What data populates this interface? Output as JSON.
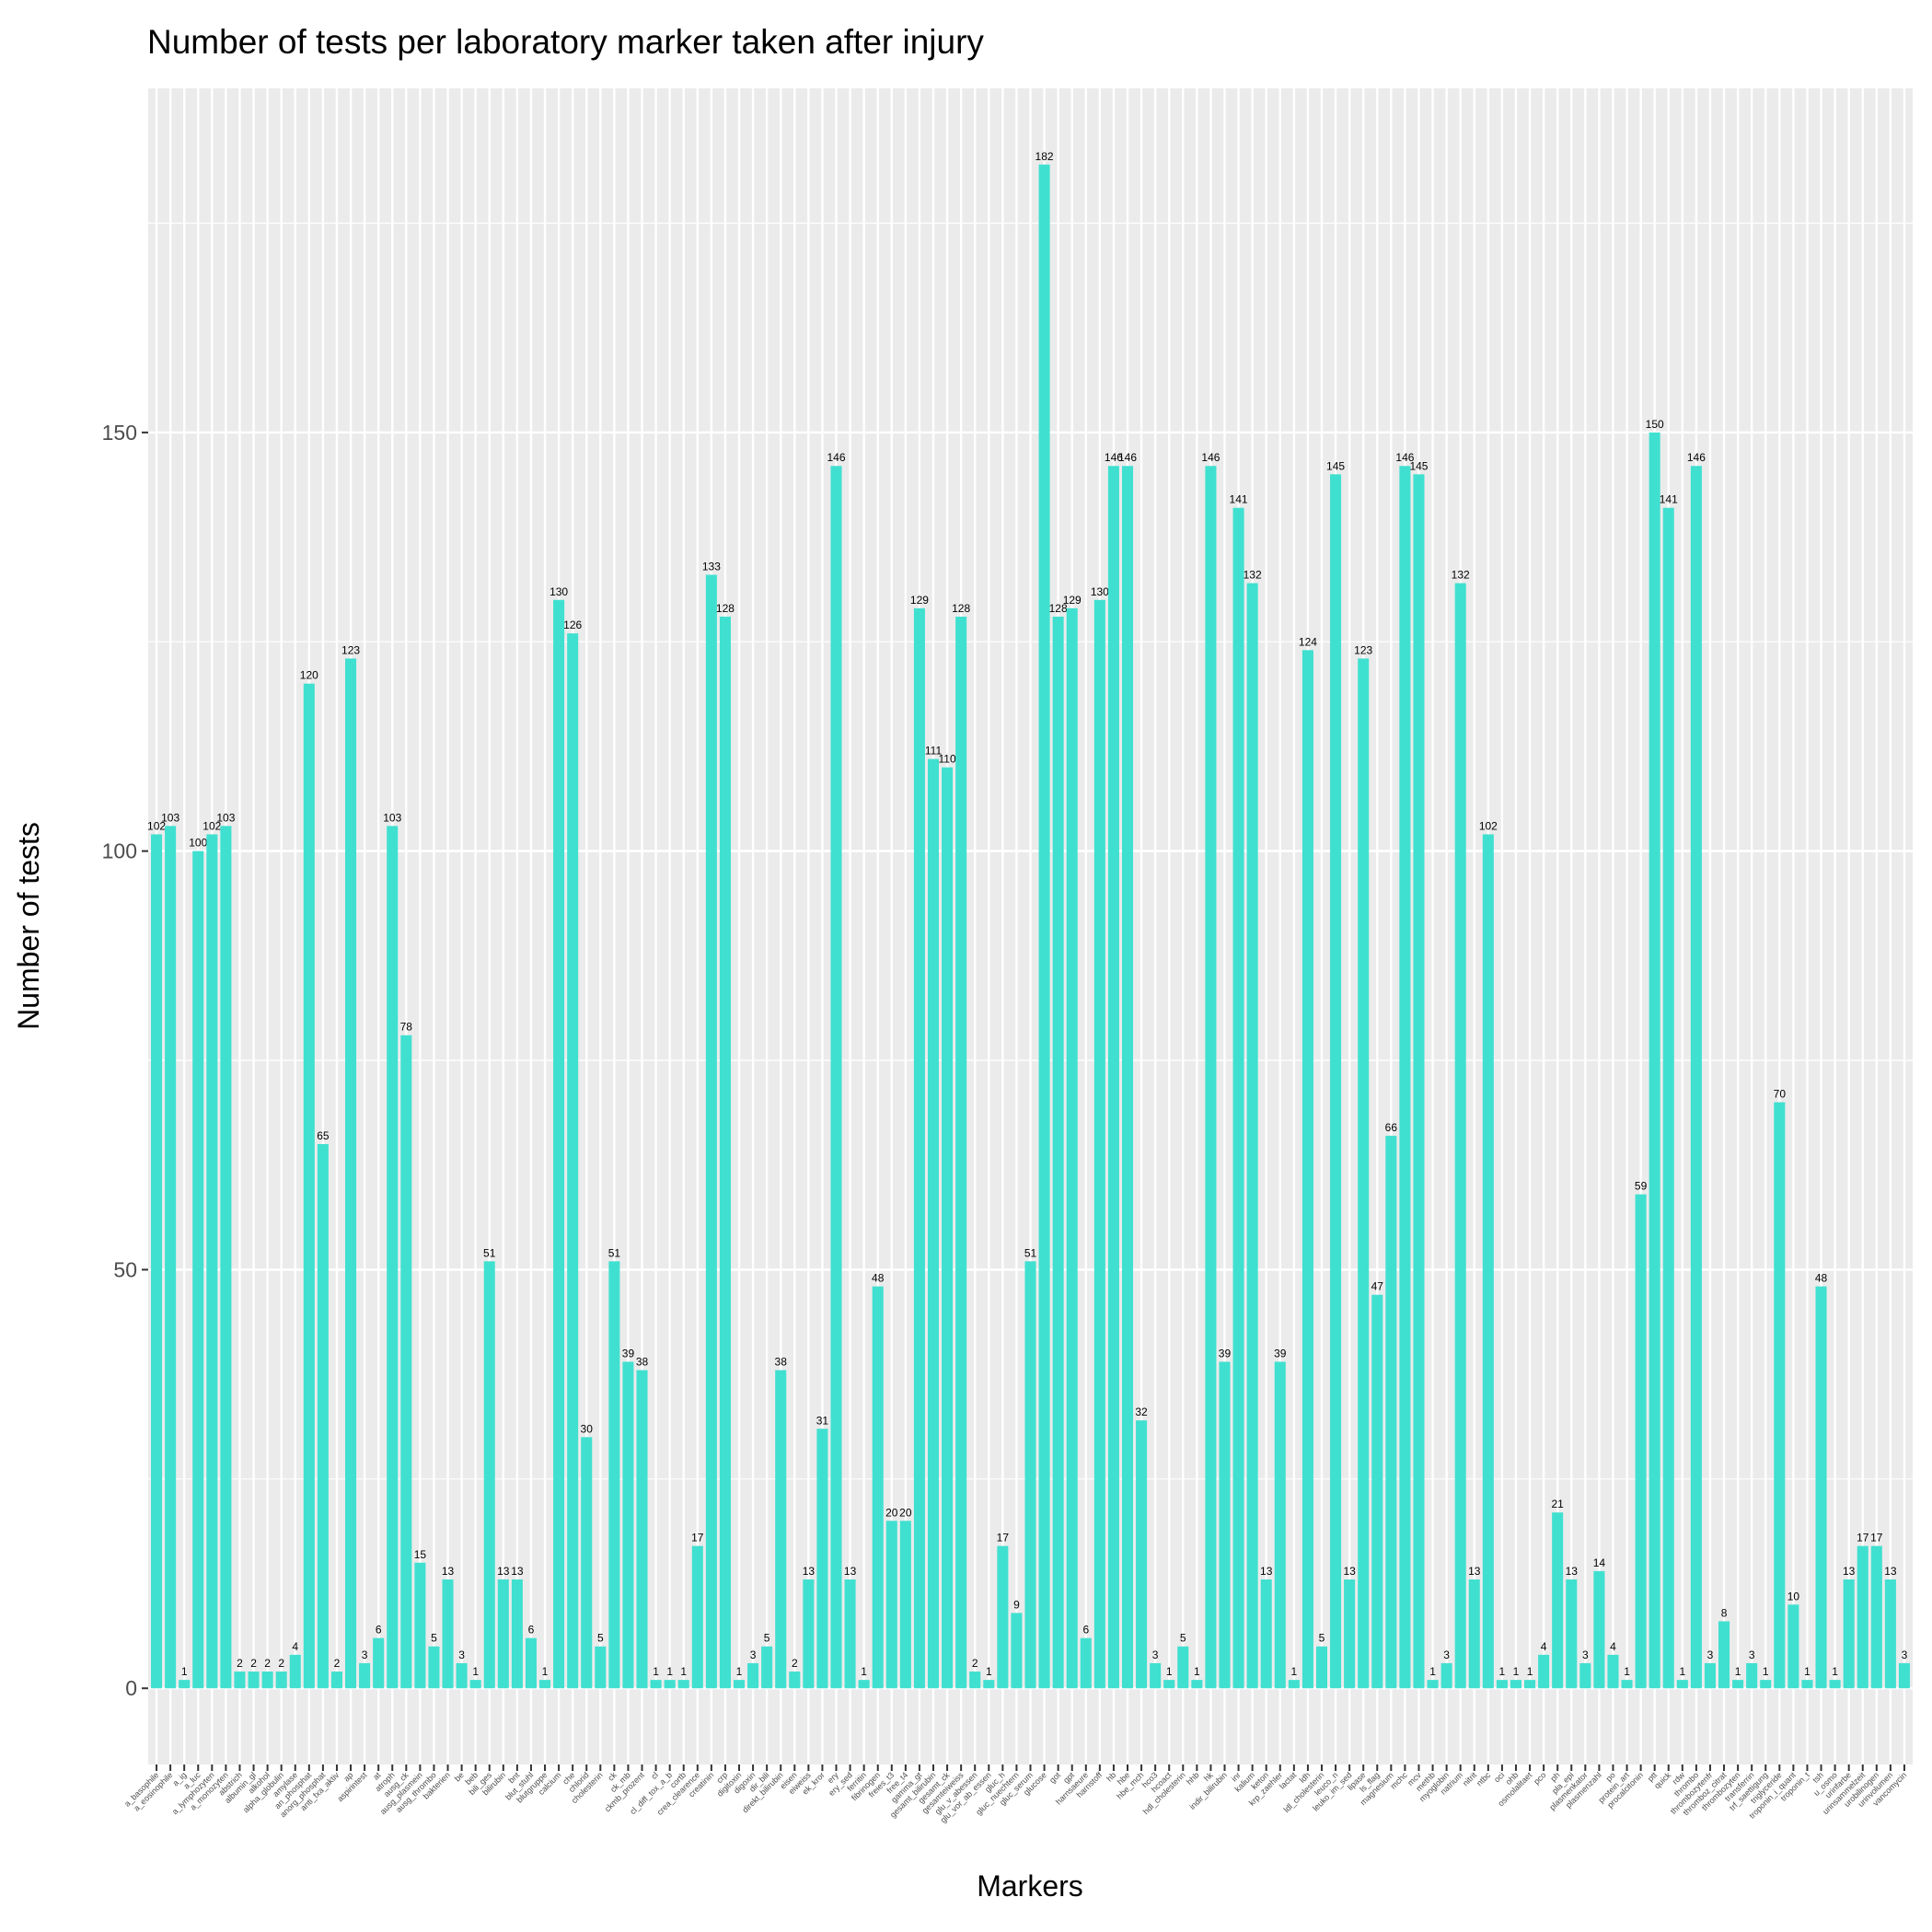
{
  "chart_data": {
    "type": "bar",
    "title": "Number of tests per laboratory marker taken after injury",
    "x_label": "Markers",
    "y_label": "Number of tests",
    "color": "#40e0d0",
    "grid": true,
    "ylim": [
      -9.1,
      191.1
    ],
    "yticks": [
      0,
      50,
      100,
      150
    ],
    "categories": [
      "a_basophile",
      "a_eosinophile",
      "a_ig",
      "a_luc",
      "a_lymphozyten",
      "a_monozyten",
      "abstrich",
      "albumin_gl",
      "alkohol",
      "alpha_globulin",
      "amylase",
      "an_phosphat",
      "anorg_phosphat",
      "anti_fxa_aktiv",
      "ap",
      "aspirintest",
      "at",
      "atroph",
      "ausg_ck",
      "ausg_plasmein",
      "ausg_thrombo",
      "bakterien",
      "be",
      "beb",
      "bili_ges",
      "bilirubin",
      "bnt",
      "blut_stuhl",
      "blutgruppe",
      "calcium",
      "che",
      "chlorid",
      "cholesterin",
      "ck",
      "ck_mb",
      "ckmb_prozent",
      "cl",
      "cl_diff_tox_a_b",
      "cortb",
      "crea_clearence",
      "creatinin",
      "crp",
      "digitoxin",
      "digoxin",
      "dir_bili",
      "direkt_bilirubin",
      "eisen",
      "eiweiss",
      "ek_kror",
      "ery",
      "ery_sed",
      "ferritin",
      "fibrinogen",
      "freies_t3",
      "free_t4",
      "gamma_gt",
      "gesamt_bilirubin",
      "gesamt_ck",
      "gesamteiweiss",
      "glu_v_abessen",
      "glu_vor_ab_essen",
      "gluc_h",
      "gluc_nuechtern",
      "gluc_serum",
      "glucose",
      "got",
      "gpt",
      "harnsaeure",
      "harnstoff",
      "hb",
      "hbe",
      "hbe_mch",
      "hco3",
      "hcoact",
      "hdl_cholesterin",
      "hhb",
      "hk",
      "indir_bilirubin",
      "inr",
      "kalium",
      "keton",
      "krp_zaehler",
      "lactat",
      "ldh",
      "ldl_cholesterin",
      "leuco_n",
      "leuko_im_sed",
      "lipase",
      "ls_flag",
      "magnesium",
      "mchc",
      "mcv",
      "methb",
      "myoglobin",
      "natrium",
      "nitrit",
      "ntbc",
      "oci",
      "ohb",
      "osmolalitaet",
      "pco",
      "ph",
      "pla_epi",
      "plasmenkator",
      "plasmenzahl",
      "po",
      "protein_art",
      "procalcitonin",
      "ptt",
      "quick",
      "rdw",
      "thrombo",
      "thrombozytenfr",
      "thromboz_citrat",
      "thrombozyten",
      "transferrin",
      "trf_saettigung",
      "triglyceride",
      "troponin_i_quant",
      "troponin_t",
      "tsh",
      "u_osmo",
      "urinfarbe",
      "urinsammelzeit",
      "urobilinogen",
      "urinvolumen",
      "vancomycin"
    ],
    "values": [
      102,
      103,
      1,
      100,
      102,
      103,
      2,
      2,
      2,
      2,
      4,
      120,
      65,
      2,
      123,
      3,
      6,
      103,
      78,
      15,
      5,
      13,
      3,
      1,
      51,
      13,
      13,
      6,
      1,
      130,
      126,
      30,
      5,
      51,
      39,
      38,
      1,
      1,
      1,
      17,
      133,
      128,
      1,
      3,
      5,
      38,
      2,
      13,
      31,
      146,
      13,
      1,
      48,
      20,
      20,
      129,
      111,
      110,
      128,
      2,
      1,
      17,
      9,
      51,
      182,
      128,
      129,
      6,
      130,
      146,
      146,
      32,
      3,
      1,
      5,
      1,
      146,
      39,
      141,
      132,
      13,
      39,
      1,
      124,
      5,
      145,
      13,
      123,
      47,
      66,
      146,
      145,
      1,
      3,
      132,
      13,
      102,
      1,
      1,
      1,
      4,
      21,
      13,
      3,
      14,
      4,
      1,
      59,
      150,
      141,
      1,
      146,
      3,
      8,
      1,
      3,
      1,
      70,
      10,
      1,
      48,
      1,
      13,
      17,
      17,
      13,
      3
    ]
  }
}
